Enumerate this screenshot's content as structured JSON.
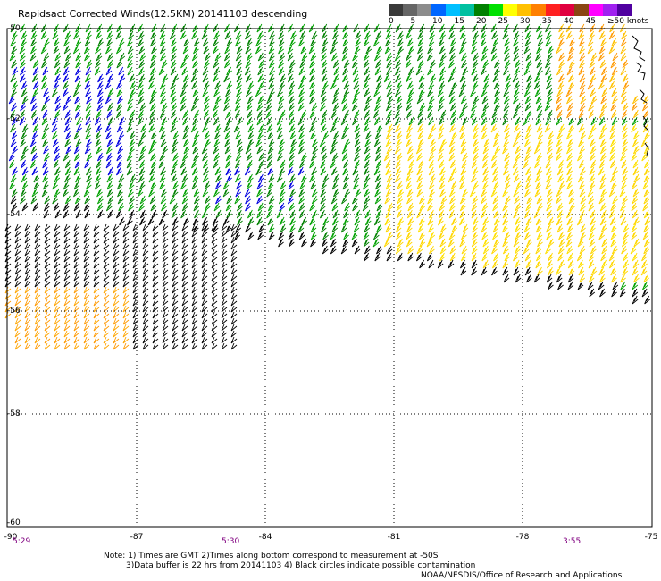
{
  "title": "Rapidsact Corrected Winds(12.5KM) 20141103 descending",
  "legend": {
    "colors": [
      "#3a3a3a",
      "#666666",
      "#8c8c8c",
      "#0066ff",
      "#00bfff",
      "#00c0a0",
      "#008000",
      "#00e000",
      "#ffff00",
      "#ffc000",
      "#ff8000",
      "#ff2020",
      "#e00040",
      "#8b4513",
      "#ff00ff",
      "#a020f0",
      "#5000a0"
    ],
    "labels": [
      "0",
      "5",
      "10",
      "15",
      "20",
      "25",
      "30",
      "35",
      "40",
      "45",
      "≥50 knots"
    ]
  },
  "map": {
    "lat_labels": [
      "-50",
      "-52",
      "-54",
      "-56",
      "-58",
      "-60"
    ],
    "lon_labels": [
      "-90",
      "-87",
      "-84",
      "-81",
      "-78",
      "-75"
    ],
    "time_labels": [
      "5:29",
      "5:30",
      "3:55"
    ]
  },
  "notes": {
    "line1": "Note: 1) Times are GMT 2)Times along bottom correspond to measurement at -50S",
    "line2": "3)Data buffer is 22 hrs from 20141103 4) Black circles indicate possible contamination",
    "credit": "NOAA/NESDIS/Office of Research and Applications"
  }
}
